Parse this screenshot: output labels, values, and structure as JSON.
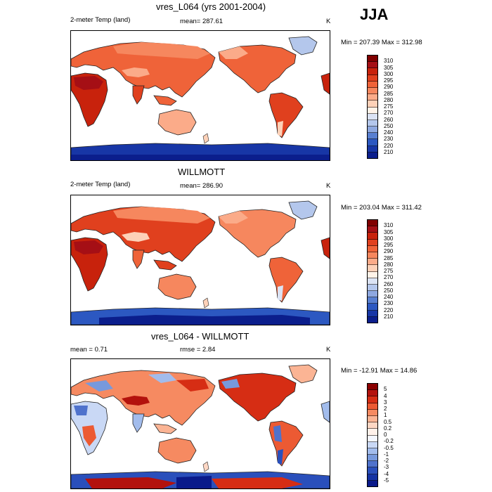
{
  "season": "JJA",
  "panels": [
    {
      "title": "vres_L064 (yrs 2001-2004)",
      "left_label": "2-meter Temp (land)",
      "center_label": "mean= 287.61",
      "units": "K",
      "minmax": "Min = 207.39 Max = 312.98",
      "colorbar_ticks": [
        "310",
        "305",
        "300",
        "295",
        "290",
        "285",
        "280",
        "275",
        "270",
        "260",
        "250",
        "240",
        "230",
        "220",
        "210"
      ],
      "colorbar_colors": [
        "#800000",
        "#a50f15",
        "#c8220c",
        "#e0401e",
        "#ef6339",
        "#f6875e",
        "#fbab89",
        "#fdd1b8",
        "#fff3e8",
        "#dbe3f4",
        "#b4c7ec",
        "#8ea8e0",
        "#587fd1",
        "#2c58c1",
        "#1736a6",
        "#0b1e8c"
      ]
    },
    {
      "title": "WILLMOTT",
      "left_label": "2-meter Temp (land)",
      "center_label": "mean= 286.90",
      "units": "K",
      "minmax": "Min = 203.04 Max = 311.42",
      "colorbar_ticks": [
        "310",
        "305",
        "300",
        "295",
        "290",
        "285",
        "280",
        "275",
        "270",
        "260",
        "250",
        "240",
        "230",
        "220",
        "210"
      ],
      "colorbar_colors": [
        "#800000",
        "#a50f15",
        "#c8220c",
        "#e0401e",
        "#ef6339",
        "#f6875e",
        "#fbab89",
        "#fdd1b8",
        "#fff3e8",
        "#dbe3f4",
        "#b4c7ec",
        "#8ea8e0",
        "#587fd1",
        "#2c58c1",
        "#1736a6",
        "#0b1e8c"
      ]
    },
    {
      "title": "vres_L064 - WILLMOTT",
      "left_label": "mean =   0.71",
      "center_label": "rmse =   2.84",
      "units": "K",
      "minmax": "Min = -12.91 Max =  14.86",
      "colorbar_ticks": [
        "5",
        "4",
        "3",
        "2",
        "1",
        "0.5",
        "0.2",
        "0",
        "-0.2",
        "-0.5",
        "-1",
        "-2",
        "-3",
        "-4",
        "-5"
      ],
      "colorbar_colors": [
        "#8b0000",
        "#b3120d",
        "#d62d14",
        "#ec5a33",
        "#f68a61",
        "#fbb494",
        "#fdd7c4",
        "#fff1ea",
        "#f4f7ff",
        "#c9d8f5",
        "#a2bcec",
        "#7799dc",
        "#4f72cc",
        "#2a4fbb",
        "#1432a3",
        "#0a1a8a"
      ]
    }
  ],
  "chart_data": [
    {
      "type": "heatmap",
      "title": "vres_L064 (yrs 2001-2004)",
      "variable": "2-meter Temp (land)",
      "units": "K",
      "mean": 287.61,
      "min": 207.39,
      "max": 312.98,
      "levels": [
        210,
        220,
        230,
        240,
        250,
        260,
        270,
        275,
        280,
        285,
        290,
        295,
        300,
        305,
        310
      ]
    },
    {
      "type": "heatmap",
      "title": "WILLMOTT",
      "variable": "2-meter Temp (land)",
      "units": "K",
      "mean": 286.9,
      "min": 203.04,
      "max": 311.42,
      "levels": [
        210,
        220,
        230,
        240,
        250,
        260,
        270,
        275,
        280,
        285,
        290,
        295,
        300,
        305,
        310
      ]
    },
    {
      "type": "heatmap",
      "title": "vres_L064 - WILLMOTT",
      "units": "K",
      "mean": 0.71,
      "rmse": 2.84,
      "min": -12.91,
      "max": 14.86,
      "levels": [
        -5,
        -4,
        -3,
        -2,
        -1,
        -0.5,
        -0.2,
        0,
        0.2,
        0.5,
        1,
        2,
        3,
        4,
        5
      ]
    }
  ]
}
